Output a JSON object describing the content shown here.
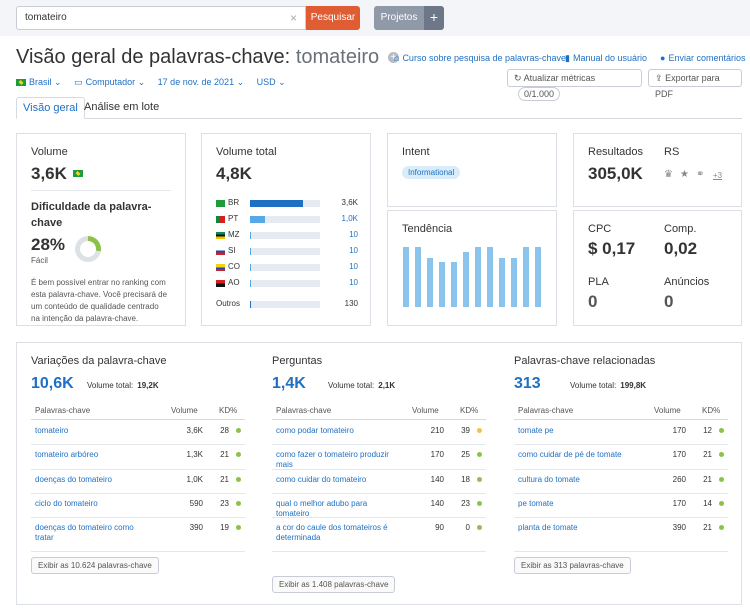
{
  "search": {
    "value": "tomateiro",
    "button": "Pesquisar",
    "clear": "×"
  },
  "projects": {
    "label": "Projetos",
    "plus": "+"
  },
  "title": {
    "prefix": "Visão geral de palavras-chave:",
    "keyword": "tomateiro",
    "plus": "+"
  },
  "links": {
    "course": "Curso sobre pesquisa de palavras-chave",
    "manual": "Manual do usuário",
    "feedback": "Enviar comentários"
  },
  "filters": {
    "country": "Brasil ⌄",
    "device": "Computador ⌄",
    "date": "17 de nov. de 2021 ⌄",
    "currency": "USD ⌄"
  },
  "actions": {
    "update": "Atualizar métricas",
    "counter": "0/1.000",
    "export": "Exportar para PDF"
  },
  "tabs": [
    "Visão geral",
    "Análise em lote"
  ],
  "volume": {
    "label": "Volume",
    "value": "3,6K"
  },
  "difficulty": {
    "label1": "Dificuldade da palavra-",
    "label2": "chave",
    "value": "28%",
    "level": "Fácil",
    "percent": 28,
    "desc": [
      "É bem possível entrar no ranking com",
      "esta palavra-chave. Você precisará de",
      "um conteúdo de qualidade centrado",
      "na intenção da palavra-chave."
    ]
  },
  "total_volume": {
    "label": "Volume total",
    "value": "4,8K",
    "countries": [
      {
        "code": "BR",
        "value": "3,6K",
        "share": 75,
        "link": false
      },
      {
        "code": "PT",
        "value": "1,0K",
        "share": 21,
        "link": true
      },
      {
        "code": "MZ",
        "value": "10",
        "share": 1.5,
        "link": true
      },
      {
        "code": "SI",
        "value": "10",
        "share": 1.5,
        "link": true
      },
      {
        "code": "CO",
        "value": "10",
        "share": 1.5,
        "link": true
      },
      {
        "code": "AO",
        "value": "10",
        "share": 1.5,
        "link": true
      }
    ],
    "others_label": "Outros",
    "others_value": "130",
    "others_share": 2
  },
  "intent": {
    "label": "Intent",
    "badge": "Informational"
  },
  "trend": {
    "label": "Tendência",
    "values": [
      100,
      100,
      82,
      75,
      75,
      92,
      100,
      100,
      82,
      82,
      100,
      100
    ]
  },
  "results": {
    "label": "Resultados",
    "value": "305,0K",
    "rs_label": "RS",
    "more": "+3"
  },
  "cpc": {
    "label": "CPC",
    "value": "$ 0,17",
    "comp_label": "Comp.",
    "comp_value": "0,02",
    "pla_label": "PLA",
    "pla_value": "0",
    "ads_label": "Anúncios",
    "ads_value": "0"
  },
  "variations": {
    "title": "Variações da palavra-chave",
    "big": "10,6K",
    "sub_label": "Volume total:",
    "sub_value": "19,2K",
    "cols": [
      "Palavras-chave",
      "Volume",
      "KD%"
    ],
    "rows": [
      {
        "k1": "tomateiro",
        "k2": "",
        "v": "3,6K",
        "kd": "28",
        "c": "#8bc34a"
      },
      {
        "k1": "tomateiro arbóreo",
        "k2": "",
        "v": "1,3K",
        "kd": "21",
        "c": "#8bc34a"
      },
      {
        "k1": "doenças do tomateiro",
        "k2": "",
        "v": "1,0K",
        "kd": "21",
        "c": "#8bc34a"
      },
      {
        "k1": "ciclo do tomateiro",
        "k2": "",
        "v": "590",
        "kd": "23",
        "c": "#8bc34a"
      },
      {
        "k1": "doenças do tomateiro como",
        "k2": "tratar",
        "v": "390",
        "kd": "19",
        "c": "#8bc34a"
      }
    ],
    "button": "Exibir as 10.624 palavras-chave"
  },
  "questions": {
    "title": "Perguntas",
    "big": "1,4K",
    "sub_label": "Volume total:",
    "sub_value": "2,1K",
    "cols": [
      "Palavras-chave",
      "Volume",
      "KD%"
    ],
    "rows": [
      {
        "k1": "como podar tomateiro",
        "k2": "",
        "v": "210",
        "kd": "39",
        "c": "#f5c342"
      },
      {
        "k1": "como fazer o tomateiro produzir",
        "k2": "mais",
        "v": "170",
        "kd": "25",
        "c": "#8bc34a"
      },
      {
        "k1": "como cuidar do tomateiro",
        "k2": "",
        "v": "140",
        "kd": "18",
        "c": "#8bc34a"
      },
      {
        "k1": "qual o melhor adubo para",
        "k2": "tomateiro",
        "v": "140",
        "kd": "23",
        "c": "#8bc34a"
      },
      {
        "k1": "a cor do caule dos tomateiros é",
        "k2": "determinada",
        "v": "90",
        "kd": "0",
        "c": "#8bc34a"
      }
    ],
    "button": "Exibir as 1.408 palavras-chave"
  },
  "related": {
    "title": "Palavras-chave relacionadas",
    "big": "313",
    "sub_label": "Volume total:",
    "sub_value": "199,8K",
    "cols": [
      "Palavras-chave",
      "Volume",
      "KD%"
    ],
    "rows": [
      {
        "k1": "tomate pe",
        "k2": "",
        "v": "170",
        "kd": "12",
        "c": "#8bc34a"
      },
      {
        "k1": "como cuidar de pé de tomate",
        "k2": "",
        "v": "170",
        "kd": "21",
        "c": "#8bc34a"
      },
      {
        "k1": "cultura do tomate",
        "k2": "",
        "v": "260",
        "kd": "21",
        "c": "#8bc34a"
      },
      {
        "k1": "pe tomate",
        "k2": "",
        "v": "170",
        "kd": "14",
        "c": "#8bc34a"
      },
      {
        "k1": "planta de tomate",
        "k2": "",
        "v": "390",
        "kd": "21",
        "c": "#8bc34a"
      }
    ],
    "button": "Exibir as 313 palavras-chave"
  }
}
